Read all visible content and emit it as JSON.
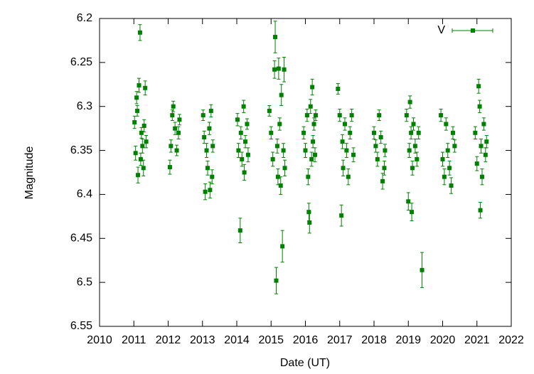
{
  "chart_data": {
    "type": "scatter",
    "x_label": "Date (UT)",
    "y_label": "Magnitude",
    "xlim": [
      2010,
      2022
    ],
    "xticks": [
      2010,
      2011,
      2012,
      2013,
      2014,
      2015,
      2016,
      2017,
      2018,
      2019,
      2020,
      2021,
      2022
    ],
    "ylim": [
      6.2,
      6.55
    ],
    "yticks": [
      6.2,
      6.25,
      6.3,
      6.35,
      6.4,
      6.45,
      6.5,
      6.55
    ],
    "y_inverted": true,
    "legend": "upper right",
    "series": [
      {
        "name": "V",
        "color": "#008000",
        "x": [
          2011.02,
          2011.05,
          2011.08,
          2011.1,
          2011.12,
          2011.15,
          2011.18,
          2011.2,
          2011.22,
          2011.25,
          2011.28,
          2011.3,
          2011.33,
          2011.36,
          2012.05,
          2012.08,
          2012.12,
          2012.15,
          2012.2,
          2012.25,
          2012.3,
          2012.33,
          2013.02,
          2013.05,
          2013.08,
          2013.12,
          2013.15,
          2013.2,
          2013.22,
          2013.25,
          2013.28,
          2013.3,
          2014.02,
          2014.05,
          2014.1,
          2014.12,
          2014.15,
          2014.2,
          2014.22,
          2014.25,
          2014.3,
          2014.33,
          2014.95,
          2015.0,
          2015.05,
          2015.1,
          2015.12,
          2015.15,
          2015.18,
          2015.2,
          2015.22,
          2015.25,
          2015.28,
          2015.3,
          2015.33,
          2015.36,
          2015.38,
          2015.4,
          2015.95,
          2016.0,
          2016.05,
          2016.08,
          2016.1,
          2016.12,
          2016.15,
          2016.18,
          2016.2,
          2016.22,
          2016.25,
          2016.28,
          2016.3,
          2016.95,
          2017.0,
          2017.05,
          2017.08,
          2017.1,
          2017.15,
          2017.2,
          2017.25,
          2017.3,
          2017.35,
          2017.4,
          2018.0,
          2018.05,
          2018.1,
          2018.15,
          2018.2,
          2018.25,
          2018.3,
          2018.32,
          2018.95,
          2019.0,
          2019.03,
          2019.05,
          2019.08,
          2019.1,
          2019.12,
          2019.15,
          2019.2,
          2019.25,
          2019.3,
          2019.4,
          2019.95,
          2020.0,
          2020.05,
          2020.1,
          2020.15,
          2020.2,
          2020.25,
          2020.3,
          2020.35,
          2020.95,
          2021.0,
          2021.05,
          2021.08,
          2021.1,
          2021.12,
          2021.15,
          2021.2,
          2021.25,
          2021.28
        ],
        "values": [
          6.318,
          6.353,
          6.29,
          6.305,
          6.378,
          6.276,
          6.216,
          6.36,
          6.33,
          6.345,
          6.37,
          6.322,
          6.279,
          6.34,
          6.369,
          6.345,
          6.31,
          6.3,
          6.325,
          6.35,
          6.33,
          6.315,
          6.31,
          6.335,
          6.397,
          6.35,
          6.37,
          6.325,
          6.395,
          6.305,
          6.38,
          6.345,
          6.315,
          6.35,
          6.441,
          6.33,
          6.36,
          6.3,
          6.375,
          6.34,
          6.32,
          6.355,
          6.305,
          6.33,
          6.36,
          6.258,
          6.221,
          6.498,
          6.345,
          6.38,
          6.257,
          6.32,
          6.39,
          6.287,
          6.459,
          6.35,
          6.258,
          6.37,
          6.33,
          6.35,
          6.31,
          6.38,
          6.42,
          6.432,
          6.3,
          6.36,
          6.278,
          6.34,
          6.32,
          6.355,
          6.31,
          6.28,
          6.31,
          6.424,
          6.34,
          6.37,
          6.32,
          6.35,
          6.38,
          6.33,
          6.31,
          6.355,
          6.33,
          6.345,
          6.36,
          6.31,
          6.335,
          6.385,
          6.37,
          6.35,
          6.31,
          6.408,
          6.35,
          6.295,
          6.33,
          6.42,
          6.37,
          6.32,
          6.345,
          6.36,
          6.33,
          6.486,
          6.31,
          6.36,
          6.38,
          6.32,
          6.35,
          6.37,
          6.39,
          6.33,
          6.345,
          6.33,
          6.365,
          6.277,
          6.3,
          6.418,
          6.345,
          6.38,
          6.32,
          6.355,
          6.34
        ],
        "errors": [
          0.007,
          0.008,
          0.007,
          0.006,
          0.009,
          0.008,
          0.009,
          0.007,
          0.006,
          0.008,
          0.009,
          0.007,
          0.008,
          0.007,
          0.008,
          0.007,
          0.006,
          0.006,
          0.007,
          0.006,
          0.007,
          0.006,
          0.006,
          0.007,
          0.009,
          0.008,
          0.008,
          0.007,
          0.009,
          0.007,
          0.008,
          0.007,
          0.007,
          0.008,
          0.014,
          0.007,
          0.008,
          0.007,
          0.009,
          0.007,
          0.006,
          0.008,
          0.006,
          0.007,
          0.008,
          0.01,
          0.018,
          0.015,
          0.008,
          0.009,
          0.012,
          0.007,
          0.01,
          0.012,
          0.018,
          0.008,
          0.014,
          0.009,
          0.007,
          0.008,
          0.007,
          0.009,
          0.01,
          0.012,
          0.008,
          0.008,
          0.009,
          0.007,
          0.007,
          0.008,
          0.006,
          0.006,
          0.007,
          0.012,
          0.008,
          0.009,
          0.007,
          0.008,
          0.009,
          0.007,
          0.007,
          0.008,
          0.007,
          0.007,
          0.008,
          0.006,
          0.007,
          0.009,
          0.008,
          0.007,
          0.007,
          0.01,
          0.008,
          0.007,
          0.007,
          0.01,
          0.008,
          0.007,
          0.008,
          0.008,
          0.007,
          0.02,
          0.007,
          0.008,
          0.009,
          0.007,
          0.008,
          0.008,
          0.009,
          0.007,
          0.007,
          0.007,
          0.008,
          0.008,
          0.007,
          0.009,
          0.008,
          0.009,
          0.007,
          0.008,
          0.007
        ]
      }
    ]
  }
}
